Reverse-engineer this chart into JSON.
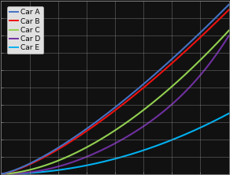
{
  "title": "",
  "x_max": 8,
  "y_max": 10,
  "x_ticks": [
    1,
    2,
    3,
    4,
    5,
    6,
    7,
    8
  ],
  "y_ticks": [
    1,
    2,
    3,
    4,
    5,
    6,
    7,
    8,
    9,
    10
  ],
  "grid_color": "#888888",
  "background_color": "#111111",
  "plot_bg_color": "#111111",
  "legend_entries": [
    "Car A",
    "Car B",
    "Car C",
    "Car D",
    "Car E"
  ],
  "line_colors": [
    "#4472c4",
    "#ee1111",
    "#92d050",
    "#7030a0",
    "#00b0f0"
  ],
  "line_widths": [
    1.8,
    1.8,
    1.8,
    1.8,
    1.8
  ],
  "legend_bg": "#e0e0e0",
  "legend_edge": "#bbbbbb",
  "legend_fontsize": 6.5
}
